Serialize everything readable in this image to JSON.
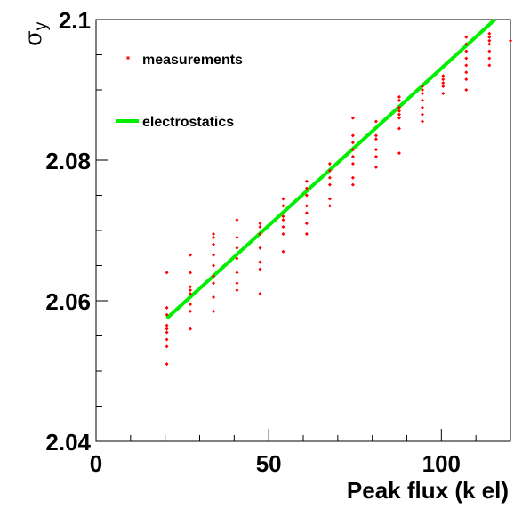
{
  "chart_data": {
    "type": "scatter",
    "title": "",
    "xlabel": "Peak flux (k el)",
    "ylabel_symbol": "σ",
    "ylabel_subscript": "y",
    "xlim": [
      0,
      120
    ],
    "ylim": [
      2.04,
      2.1
    ],
    "x_ticks": [
      {
        "value": 0,
        "label": "0"
      },
      {
        "value": 50,
        "label": "50"
      },
      {
        "value": 100,
        "label": "100"
      }
    ],
    "y_ticks": [
      {
        "value": 2.04,
        "label": "2.04"
      },
      {
        "value": 2.06,
        "label": "2.06"
      },
      {
        "value": 2.08,
        "label": "2.08"
      },
      {
        "value": 2.1,
        "label": "2.1"
      }
    ],
    "x_minor_step": 10,
    "y_minor_step": 0.005,
    "grid": false,
    "legend_position": "top-left",
    "colors": {
      "measurements": "#ff0000",
      "electrostatics": "#00ee00"
    },
    "series": [
      {
        "name": "measurements",
        "kind": "points",
        "points": [
          [
            20.5,
            2.051
          ],
          [
            20.5,
            2.0535
          ],
          [
            20.5,
            2.0545
          ],
          [
            20.5,
            2.0555
          ],
          [
            20.5,
            2.056
          ],
          [
            20.5,
            2.0565
          ],
          [
            20.5,
            2.058
          ],
          [
            20.5,
            2.059
          ],
          [
            20.5,
            2.064
          ],
          [
            27.3,
            2.056
          ],
          [
            27.3,
            2.0585
          ],
          [
            27.3,
            2.0595
          ],
          [
            27.3,
            2.061
          ],
          [
            27.3,
            2.0615
          ],
          [
            27.3,
            2.062
          ],
          [
            27.3,
            2.064
          ],
          [
            27.3,
            2.0665
          ],
          [
            34.0,
            2.0585
          ],
          [
            34.0,
            2.0605
          ],
          [
            34.0,
            2.0625
          ],
          [
            34.0,
            2.0635
          ],
          [
            34.0,
            2.065
          ],
          [
            34.0,
            2.0665
          ],
          [
            34.0,
            2.068
          ],
          [
            34.0,
            2.069
          ],
          [
            34.0,
            2.0695
          ],
          [
            40.8,
            2.0615
          ],
          [
            40.8,
            2.0625
          ],
          [
            40.8,
            2.064
          ],
          [
            40.8,
            2.066
          ],
          [
            40.8,
            2.0675
          ],
          [
            40.8,
            2.069
          ],
          [
            40.8,
            2.0715
          ],
          [
            47.5,
            2.061
          ],
          [
            47.5,
            2.0645
          ],
          [
            47.5,
            2.0655
          ],
          [
            47.5,
            2.0675
          ],
          [
            47.5,
            2.0695
          ],
          [
            47.5,
            2.0705
          ],
          [
            47.5,
            2.071
          ],
          [
            54.2,
            2.067
          ],
          [
            54.2,
            2.0695
          ],
          [
            54.2,
            2.0705
          ],
          [
            54.2,
            2.0715
          ],
          [
            54.2,
            2.072
          ],
          [
            54.2,
            2.0735
          ],
          [
            54.2,
            2.0745
          ],
          [
            61.0,
            2.0695
          ],
          [
            61.0,
            2.071
          ],
          [
            61.0,
            2.0725
          ],
          [
            61.0,
            2.0735
          ],
          [
            61.0,
            2.075
          ],
          [
            61.0,
            2.076
          ],
          [
            61.0,
            2.077
          ],
          [
            67.7,
            2.0735
          ],
          [
            67.7,
            2.0745
          ],
          [
            67.7,
            2.0765
          ],
          [
            67.7,
            2.0775
          ],
          [
            67.7,
            2.0785
          ],
          [
            67.7,
            2.0795
          ],
          [
            74.4,
            2.0765
          ],
          [
            74.4,
            2.0775
          ],
          [
            74.4,
            2.0795
          ],
          [
            74.4,
            2.0805
          ],
          [
            74.4,
            2.0815
          ],
          [
            74.4,
            2.0825
          ],
          [
            74.4,
            2.0835
          ],
          [
            74.4,
            2.086
          ],
          [
            81.1,
            2.079
          ],
          [
            81.1,
            2.0805
          ],
          [
            81.1,
            2.0815
          ],
          [
            81.1,
            2.083
          ],
          [
            81.1,
            2.0835
          ],
          [
            81.1,
            2.0855
          ],
          [
            87.8,
            2.081
          ],
          [
            87.8,
            2.0845
          ],
          [
            87.8,
            2.086
          ],
          [
            87.8,
            2.0865
          ],
          [
            87.8,
            2.087
          ],
          [
            87.8,
            2.0875
          ],
          [
            87.8,
            2.0885
          ],
          [
            87.8,
            2.089
          ],
          [
            94.5,
            2.0855
          ],
          [
            94.5,
            2.0865
          ],
          [
            94.5,
            2.0875
          ],
          [
            94.5,
            2.0885
          ],
          [
            94.5,
            2.0895
          ],
          [
            94.5,
            2.09
          ],
          [
            94.5,
            2.0905
          ],
          [
            100.5,
            2.0895
          ],
          [
            100.5,
            2.0905
          ],
          [
            100.5,
            2.091
          ],
          [
            100.5,
            2.0915
          ],
          [
            100.5,
            2.092
          ],
          [
            107.2,
            2.09
          ],
          [
            107.2,
            2.0915
          ],
          [
            107.2,
            2.0925
          ],
          [
            107.2,
            2.0935
          ],
          [
            107.2,
            2.0945
          ],
          [
            107.2,
            2.0955
          ],
          [
            107.2,
            2.0965
          ],
          [
            107.2,
            2.0975
          ],
          [
            113.9,
            2.0935
          ],
          [
            113.9,
            2.0945
          ],
          [
            113.9,
            2.0955
          ],
          [
            113.9,
            2.0965
          ],
          [
            113.9,
            2.097
          ],
          [
            113.9,
            2.0975
          ],
          [
            113.9,
            2.098
          ],
          [
            120.0,
            2.097
          ]
        ]
      },
      {
        "name": "electrostatics",
        "kind": "line",
        "x": [
          20.5,
          115.5
        ],
        "y": [
          2.0575,
          2.1
        ]
      }
    ]
  }
}
